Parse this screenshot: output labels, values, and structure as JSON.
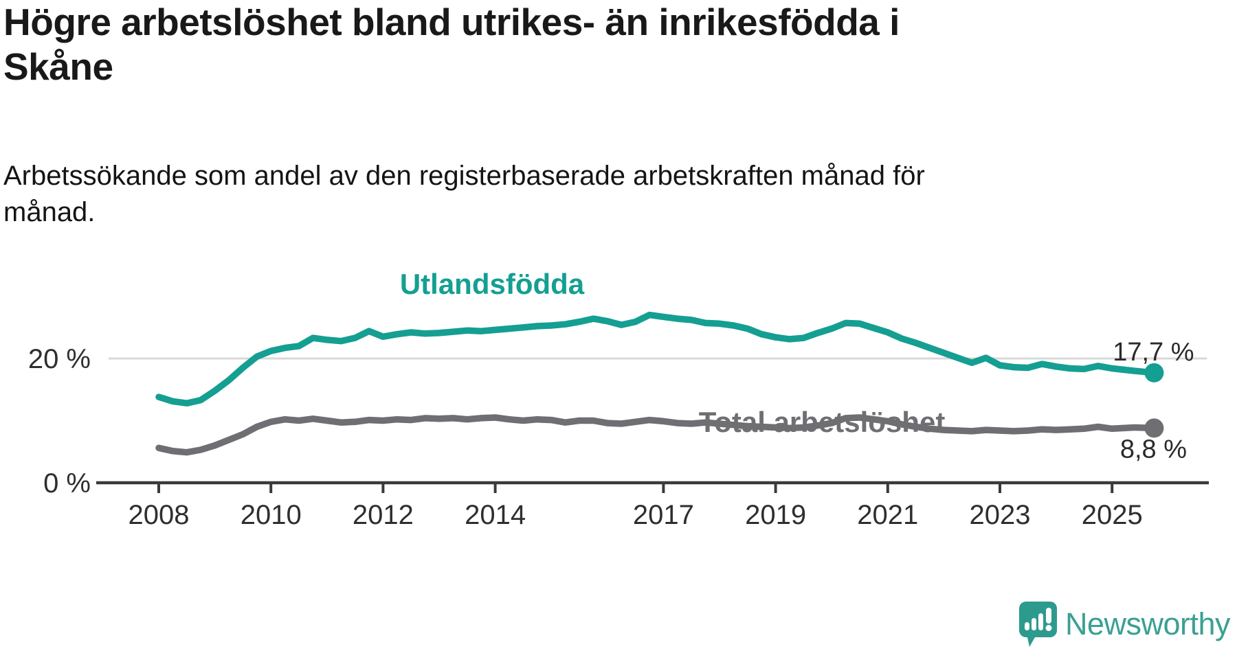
{
  "header": {
    "title": "Högre arbetslöshet bland utrikes- än inrikesfödda i Skåne",
    "subtitle": "Arbetssökande som andel av den registerbaserade arbetskraften månad för månad."
  },
  "branding": {
    "logo_text": "Newsworthy",
    "logo_text_color": "#3ba093",
    "icon_color": "#2d9a8e",
    "icon_glyph_color": "#ffffff"
  },
  "chart_data": {
    "type": "line",
    "title": "Högre arbetslöshet bland utrikes- än inrikesfödda i Skåne",
    "subtitle": "Arbetssökande som andel av den registerbaserade arbetskraften månad för månad.",
    "unit": "%",
    "xlim": [
      2007.9,
      2026.5
    ],
    "ylim": [
      0,
      30
    ],
    "grid": "single horizontal gridline at 20 %",
    "legend_position": "inline series labels on lines",
    "x": [
      2008.0,
      2008.25,
      2008.5,
      2008.75,
      2009.0,
      2009.25,
      2009.5,
      2009.75,
      2010.0,
      2010.25,
      2010.5,
      2010.75,
      2011.0,
      2011.25,
      2011.5,
      2011.75,
      2012.0,
      2012.25,
      2012.5,
      2012.75,
      2013.0,
      2013.25,
      2013.5,
      2013.75,
      2014.0,
      2014.25,
      2014.5,
      2014.75,
      2015.0,
      2015.25,
      2015.5,
      2015.75,
      2016.0,
      2016.25,
      2016.5,
      2016.75,
      2017.0,
      2017.25,
      2017.5,
      2017.75,
      2018.0,
      2018.25,
      2018.5,
      2018.75,
      2019.0,
      2019.25,
      2019.5,
      2019.75,
      2020.0,
      2020.25,
      2020.5,
      2020.75,
      2021.0,
      2021.25,
      2021.5,
      2021.75,
      2022.0,
      2022.25,
      2022.5,
      2022.75,
      2023.0,
      2023.25,
      2023.5,
      2023.75,
      2024.0,
      2024.25,
      2024.5,
      2024.75,
      2025.0,
      2025.4,
      2025.75
    ],
    "series": [
      {
        "name": "Utlandsfödda",
        "color": "#149f92",
        "end_value_label": "17,7 %",
        "end_value": 17.7,
        "values": [
          13.8,
          13.1,
          12.8,
          13.3,
          14.8,
          16.5,
          18.5,
          20.3,
          21.2,
          21.7,
          22.0,
          23.3,
          23.0,
          22.8,
          23.3,
          24.4,
          23.5,
          23.9,
          24.2,
          24.0,
          24.1,
          24.3,
          24.5,
          24.4,
          24.6,
          24.8,
          25.0,
          25.2,
          25.3,
          25.5,
          25.9,
          26.4,
          26.0,
          25.4,
          25.9,
          27.0,
          26.7,
          26.4,
          26.2,
          25.7,
          25.6,
          25.3,
          24.8,
          23.9,
          23.4,
          23.1,
          23.3,
          24.1,
          24.8,
          25.7,
          25.6,
          24.9,
          24.2,
          23.2,
          22.5,
          21.7,
          20.9,
          20.1,
          19.3,
          20.1,
          18.9,
          18.6,
          18.5,
          19.1,
          18.7,
          18.4,
          18.3,
          18.8,
          18.4,
          18.0,
          17.7
        ]
      },
      {
        "name": "Total arbetslöshet",
        "color": "#6e6e73",
        "end_value_label": "8,8 %",
        "end_value": 8.8,
        "values": [
          5.6,
          5.1,
          4.9,
          5.3,
          6.0,
          6.9,
          7.8,
          9.0,
          9.8,
          10.2,
          10.0,
          10.3,
          10.0,
          9.7,
          9.8,
          10.1,
          10.0,
          10.2,
          10.1,
          10.4,
          10.3,
          10.4,
          10.2,
          10.4,
          10.5,
          10.2,
          10.0,
          10.2,
          10.1,
          9.7,
          10.0,
          10.0,
          9.6,
          9.5,
          9.8,
          10.1,
          9.9,
          9.6,
          9.5,
          9.7,
          9.5,
          9.3,
          9.1,
          9.0,
          8.9,
          8.8,
          8.9,
          9.2,
          9.6,
          10.4,
          10.5,
          10.2,
          9.9,
          9.4,
          9.0,
          8.7,
          8.5,
          8.4,
          8.3,
          8.5,
          8.4,
          8.3,
          8.4,
          8.6,
          8.5,
          8.6,
          8.7,
          9.0,
          8.7,
          8.9,
          8.8
        ]
      }
    ],
    "xticks": [
      {
        "v": 2008,
        "label": "2008"
      },
      {
        "v": 2010,
        "label": "2010"
      },
      {
        "v": 2012,
        "label": "2012"
      },
      {
        "v": 2014,
        "label": "2014"
      },
      {
        "v": 2017,
        "label": "2017"
      },
      {
        "v": 2019,
        "label": "2019"
      },
      {
        "v": 2021,
        "label": "2021"
      },
      {
        "v": 2023,
        "label": "2023"
      },
      {
        "v": 2025,
        "label": "2025"
      }
    ],
    "yticks": [
      {
        "v": 0,
        "label": "0 %"
      },
      {
        "v": 20,
        "label": "20 %"
      }
    ],
    "colors": {
      "gridline": "#d8d8d8",
      "axis": "#3a3a3a",
      "tick_label": "#2e2e2e",
      "value_label": "#2a2a2a"
    }
  }
}
